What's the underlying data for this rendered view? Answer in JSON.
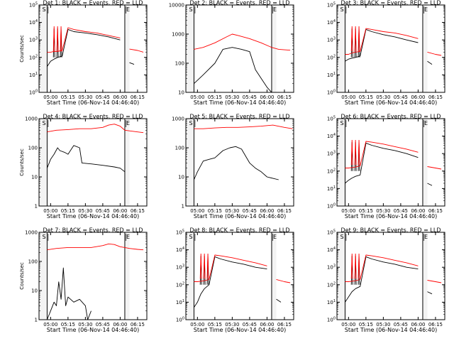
{
  "figure": {
    "xlabel": "Start Time (06-Nov-14 04:46:40)",
    "ylabel": "Counts/sec",
    "x_ticks": [
      "05:00",
      "05:15",
      "05:30",
      "05:45",
      "06:00",
      "06:15"
    ],
    "marker_s": "S",
    "marker_e": "E",
    "colors": {
      "events": "#000000",
      "lld": "#ff0000",
      "axes": "#000000",
      "background": "#ffffff"
    }
  },
  "chart_data": [
    {
      "type": "line",
      "title": "Det 1: BLACK = Events, RED = LLD",
      "xlabel": "Start Time (06-Nov-14 04:46:40)",
      "ylabel": "Counts/sec",
      "yscale": "log",
      "ylim": [
        1,
        100000
      ],
      "y_ticks": [
        "10^0",
        "10^1",
        "10^2",
        "10^3",
        "10^4",
        "10^5"
      ],
      "xlim": [
        "04:50",
        "06:23"
      ],
      "gaps": [
        [
          "04:50",
          "04:57"
        ],
        [
          "06:04",
          "06:08"
        ]
      ],
      "vertical_lines": [
        "04:57",
        "06:04"
      ],
      "spikes_at": [
        "05:03",
        "05:06",
        "05:09"
      ],
      "series": [
        {
          "name": "Events",
          "color": "#000000",
          "x": [
            "04:57",
            "05:00",
            "05:03",
            "05:06",
            "05:10",
            "05:15",
            "05:20",
            "05:30",
            "05:40",
            "05:50",
            "06:00",
            "06:04",
            "06:08",
            "06:12"
          ],
          "y": [
            30,
            60,
            80,
            100,
            120,
            4000,
            3000,
            2500,
            2000,
            1500,
            1000,
            null,
            50,
            40
          ]
        },
        {
          "name": "LLD",
          "color": "#ff0000",
          "x": [
            "04:57",
            "05:00",
            "05:03",
            "05:06",
            "05:10",
            "05:15",
            "05:20",
            "05:30",
            "05:40",
            "05:50",
            "06:00",
            "06:04",
            "06:08",
            "06:15",
            "06:20"
          ],
          "y": [
            200,
            200,
            220,
            220,
            250,
            5000,
            4000,
            3000,
            2500,
            1800,
            1300,
            null,
            300,
            250,
            200
          ]
        }
      ]
    },
    {
      "type": "line",
      "title": "Det 2: BLACK = Events, RED = LLD",
      "xlabel": "Start Time (06-Nov-14 04:46:40)",
      "ylabel": "Counts/sec",
      "yscale": "log",
      "ylim": [
        10,
        10000
      ],
      "y_ticks": [
        "10",
        "100",
        "1000",
        "10000"
      ],
      "xlim": [
        "04:50",
        "06:23"
      ],
      "gaps": [
        [
          "04:50",
          "04:57"
        ],
        [
          "06:04",
          "06:08"
        ]
      ],
      "vertical_lines": [
        "04:57",
        "06:04"
      ],
      "spikes_at": [],
      "series": [
        {
          "name": "Events",
          "color": "#000000",
          "x": [
            "04:57",
            "05:05",
            "05:15",
            "05:22",
            "05:30",
            "05:38",
            "05:45",
            "05:50",
            "05:55",
            "06:00",
            "06:04"
          ],
          "y": [
            20,
            40,
            100,
            300,
            350,
            300,
            250,
            60,
            30,
            15,
            10
          ]
        },
        {
          "name": "LLD",
          "color": "#ff0000",
          "x": [
            "04:57",
            "05:05",
            "05:15",
            "05:25",
            "05:30",
            "05:35",
            "05:45",
            "05:55",
            "06:04",
            "06:10",
            "06:20"
          ],
          "y": [
            300,
            350,
            500,
            800,
            1000,
            900,
            700,
            500,
            350,
            300,
            280
          ]
        }
      ]
    },
    {
      "type": "line",
      "title": "Det 3: BLACK = Events, RED = LLD",
      "xlabel": "Start Time (06-Nov-14 04:46:40)",
      "ylabel": "Counts/sec",
      "yscale": "log",
      "ylim": [
        1,
        100000
      ],
      "y_ticks": [
        "10^0",
        "10^1",
        "10^2",
        "10^3",
        "10^4",
        "10^5"
      ],
      "xlim": [
        "04:50",
        "06:23"
      ],
      "gaps": [
        [
          "04:50",
          "04:57"
        ],
        [
          "06:04",
          "06:08"
        ]
      ],
      "vertical_lines": [
        "04:57",
        "06:04"
      ],
      "spikes_at": [
        "05:03",
        "05:06",
        "05:09"
      ],
      "series": [
        {
          "name": "Events",
          "color": "#000000",
          "x": [
            "04:57",
            "05:00",
            "05:03",
            "05:06",
            "05:10",
            "05:15",
            "05:20",
            "05:30",
            "05:40",
            "05:50",
            "06:00",
            "06:04",
            "06:08",
            "06:12"
          ],
          "y": [
            60,
            80,
            90,
            100,
            120,
            4000,
            3000,
            2000,
            1500,
            1000,
            700,
            null,
            60,
            40
          ]
        },
        {
          "name": "LLD",
          "color": "#ff0000",
          "x": [
            "04:57",
            "05:00",
            "05:03",
            "05:06",
            "05:10",
            "05:15",
            "05:20",
            "05:30",
            "05:40",
            "05:50",
            "06:00",
            "06:04",
            "06:08",
            "06:15",
            "06:20"
          ],
          "y": [
            150,
            150,
            180,
            200,
            220,
            4500,
            4000,
            3000,
            2500,
            1800,
            1200,
            null,
            200,
            150,
            130
          ]
        }
      ]
    },
    {
      "type": "line",
      "title": "Det 4: BLACK = Events, RED = LLD",
      "xlabel": "Start Time (06-Nov-14 04:46:40)",
      "ylabel": "Counts/sec",
      "yscale": "log",
      "ylim": [
        1,
        1000
      ],
      "y_ticks": [
        "1",
        "10",
        "100",
        "1000"
      ],
      "xlim": [
        "04:50",
        "06:23"
      ],
      "gaps": [
        [
          "04:50",
          "04:57"
        ],
        [
          "06:04",
          "06:08"
        ]
      ],
      "vertical_lines": [
        "04:57",
        "06:04"
      ],
      "spikes_at": [],
      "series": [
        {
          "name": "Events",
          "color": "#000000",
          "x": [
            "04:57",
            "05:00",
            "05:03",
            "05:06",
            "05:08",
            "05:12",
            "05:15",
            "05:20",
            "05:25",
            "05:27",
            "05:35",
            "05:45",
            "05:55",
            "06:00",
            "06:04"
          ],
          "y": [
            20,
            40,
            60,
            100,
            80,
            70,
            60,
            120,
            100,
            30,
            28,
            25,
            22,
            20,
            15
          ]
        },
        {
          "name": "LLD",
          "color": "#ff0000",
          "x": [
            "04:57",
            "05:05",
            "05:15",
            "05:25",
            "05:35",
            "05:45",
            "05:50",
            "05:55",
            "06:00",
            "06:04",
            "06:08",
            "06:15",
            "06:20"
          ],
          "y": [
            350,
            400,
            420,
            450,
            450,
            500,
            600,
            650,
            550,
            400,
            380,
            350,
            330
          ]
        }
      ]
    },
    {
      "type": "line",
      "title": "Det 5: BLACK = Events, RED = LLD",
      "xlabel": "Start Time (06-Nov-14 04:46:40)",
      "ylabel": "Counts/sec",
      "yscale": "log",
      "ylim": [
        1,
        1000
      ],
      "y_ticks": [
        "1",
        "10",
        "100",
        "1000"
      ],
      "xlim": [
        "04:50",
        "06:23"
      ],
      "gaps": [
        [
          "04:50",
          "04:57"
        ]
      ],
      "vertical_lines": [
        "04:57"
      ],
      "spikes_at": [],
      "series": [
        {
          "name": "Events",
          "color": "#000000",
          "x": [
            "04:57",
            "05:00",
            "05:05",
            "05:10",
            "05:15",
            "05:22",
            "05:28",
            "05:33",
            "05:38",
            "05:45",
            "05:50",
            "05:55",
            "06:00",
            "06:10"
          ],
          "y": [
            8,
            15,
            35,
            40,
            45,
            80,
            100,
            110,
            90,
            30,
            20,
            15,
            10,
            8
          ]
        },
        {
          "name": "LLD",
          "color": "#ff0000",
          "x": [
            "04:57",
            "05:05",
            "05:15",
            "05:25",
            "05:35",
            "05:45",
            "05:55",
            "06:05",
            "06:15",
            "06:22"
          ],
          "y": [
            450,
            450,
            480,
            500,
            500,
            520,
            550,
            600,
            500,
            450
          ]
        }
      ]
    },
    {
      "type": "line",
      "title": "Det 6: BLACK = Events, RED = LLD",
      "xlabel": "Start Time (06-Nov-14 04:46:40)",
      "ylabel": "Counts/sec",
      "yscale": "log",
      "ylim": [
        1,
        100000
      ],
      "y_ticks": [
        "10^0",
        "10^1",
        "10^2",
        "10^3",
        "10^4",
        "10^5"
      ],
      "xlim": [
        "04:50",
        "06:23"
      ],
      "gaps": [
        [
          "04:50",
          "04:57"
        ],
        [
          "06:04",
          "06:08"
        ]
      ],
      "vertical_lines": [
        "04:57",
        "06:04"
      ],
      "spikes_at": [
        "05:03",
        "05:06",
        "05:09"
      ],
      "series": [
        {
          "name": "Events",
          "color": "#000000",
          "x": [
            "04:57",
            "05:00",
            "05:03",
            "05:06",
            "05:10",
            "05:15",
            "05:20",
            "05:30",
            "05:40",
            "05:50",
            "06:00",
            "06:04",
            "06:08",
            "06:12"
          ],
          "y": [
            20,
            30,
            40,
            50,
            60,
            4000,
            3000,
            2000,
            1500,
            1000,
            600,
            null,
            20,
            15
          ]
        },
        {
          "name": "LLD",
          "color": "#ff0000",
          "x": [
            "04:57",
            "05:00",
            "05:03",
            "05:06",
            "05:10",
            "05:15",
            "05:20",
            "05:30",
            "05:40",
            "05:50",
            "06:00",
            "06:04",
            "06:08",
            "06:15",
            "06:20"
          ],
          "y": [
            150,
            150,
            160,
            170,
            200,
            5000,
            4500,
            3500,
            2500,
            1800,
            1200,
            null,
            180,
            150,
            130
          ]
        }
      ]
    },
    {
      "type": "line",
      "title": "Det 7: BLACK = Events, RED = LLD",
      "xlabel": "Start Time (06-Nov-14 04:46:40)",
      "ylabel": "Counts/sec",
      "yscale": "log",
      "ylim": [
        1,
        1000
      ],
      "y_ticks": [
        "1",
        "10",
        "100",
        "1000"
      ],
      "xlim": [
        "04:50",
        "06:23"
      ],
      "gaps": [
        [
          "04:50",
          "04:57"
        ],
        [
          "06:04",
          "06:08"
        ]
      ],
      "vertical_lines": [
        "04:57",
        "06:04"
      ],
      "spikes_at": [],
      "series": [
        {
          "name": "Events",
          "color": "#000000",
          "x": [
            "04:57",
            "05:00",
            "05:03",
            "05:05",
            "05:07",
            "05:09",
            "05:11",
            "05:13",
            "05:15",
            "05:20",
            "05:25",
            "05:30",
            "05:32",
            "05:35"
          ],
          "y": [
            1,
            2,
            4,
            3,
            20,
            5,
            60,
            3,
            6,
            4,
            5,
            3,
            1,
            2
          ]
        },
        {
          "name": "LLD",
          "color": "#ff0000",
          "x": [
            "04:57",
            "05:05",
            "05:15",
            "05:25",
            "05:35",
            "05:45",
            "05:50",
            "05:55",
            "06:00",
            "06:04",
            "06:08",
            "06:15",
            "06:20"
          ],
          "y": [
            250,
            280,
            300,
            300,
            300,
            350,
            400,
            380,
            320,
            300,
            280,
            260,
            250
          ]
        }
      ]
    },
    {
      "type": "line",
      "title": "Det 8: BLACK = Events, RED = LLD",
      "xlabel": "Start Time (06-Nov-14 04:46:40)",
      "ylabel": "Counts/sec",
      "yscale": "log",
      "ylim": [
        1,
        100000
      ],
      "y_ticks": [
        "10^0",
        "10^1",
        "10^2",
        "10^3",
        "10^4",
        "10^5"
      ],
      "xlim": [
        "04:50",
        "06:23"
      ],
      "gaps": [
        [
          "04:50",
          "04:57"
        ],
        [
          "06:04",
          "06:08"
        ]
      ],
      "vertical_lines": [
        "04:57",
        "06:04"
      ],
      "spikes_at": [
        "05:03",
        "05:06",
        "05:09"
      ],
      "series": [
        {
          "name": "Events",
          "color": "#000000",
          "x": [
            "04:57",
            "05:00",
            "05:03",
            "05:06",
            "05:10",
            "05:15",
            "05:20",
            "05:30",
            "05:40",
            "05:50",
            "06:00",
            "06:04",
            "06:08",
            "06:12"
          ],
          "y": [
            5,
            10,
            30,
            60,
            100,
            4000,
            3000,
            2000,
            1500,
            1000,
            800,
            null,
            15,
            10
          ]
        },
        {
          "name": "LLD",
          "color": "#ff0000",
          "x": [
            "04:57",
            "05:00",
            "05:03",
            "05:06",
            "05:10",
            "05:15",
            "05:20",
            "05:30",
            "05:40",
            "05:50",
            "06:00",
            "06:04",
            "06:08",
            "06:15",
            "06:20"
          ],
          "y": [
            150,
            150,
            160,
            170,
            200,
            5000,
            4500,
            3500,
            2500,
            1800,
            1200,
            null,
            200,
            150,
            130
          ]
        }
      ]
    },
    {
      "type": "line",
      "title": "Det 9: BLACK = Events, RED = LLD",
      "xlabel": "Start Time (06-Nov-14 04:46:40)",
      "ylabel": "Counts/sec",
      "yscale": "log",
      "ylim": [
        1,
        100000
      ],
      "y_ticks": [
        "10^0",
        "10^1",
        "10^2",
        "10^3",
        "10^4",
        "10^5"
      ],
      "xlim": [
        "04:50",
        "06:23"
      ],
      "gaps": [
        [
          "04:50",
          "04:57"
        ],
        [
          "06:04",
          "06:08"
        ]
      ],
      "vertical_lines": [
        "04:57",
        "06:04"
      ],
      "spikes_at": [
        "05:03",
        "05:06",
        "05:09"
      ],
      "series": [
        {
          "name": "Events",
          "color": "#000000",
          "x": [
            "04:57",
            "05:00",
            "05:03",
            "05:06",
            "05:10",
            "05:15",
            "05:20",
            "05:30",
            "05:40",
            "05:50",
            "06:00",
            "06:04",
            "06:08",
            "06:12"
          ],
          "y": [
            10,
            20,
            40,
            60,
            80,
            4000,
            3000,
            2000,
            1500,
            1000,
            800,
            null,
            40,
            30
          ]
        },
        {
          "name": "LLD",
          "color": "#ff0000",
          "x": [
            "04:57",
            "05:00",
            "05:03",
            "05:06",
            "05:10",
            "05:15",
            "05:20",
            "05:30",
            "05:40",
            "05:50",
            "06:00",
            "06:04",
            "06:08",
            "06:15",
            "06:20"
          ],
          "y": [
            150,
            150,
            160,
            170,
            200,
            5000,
            4500,
            3500,
            2500,
            1800,
            1200,
            null,
            180,
            150,
            130
          ]
        }
      ]
    }
  ]
}
